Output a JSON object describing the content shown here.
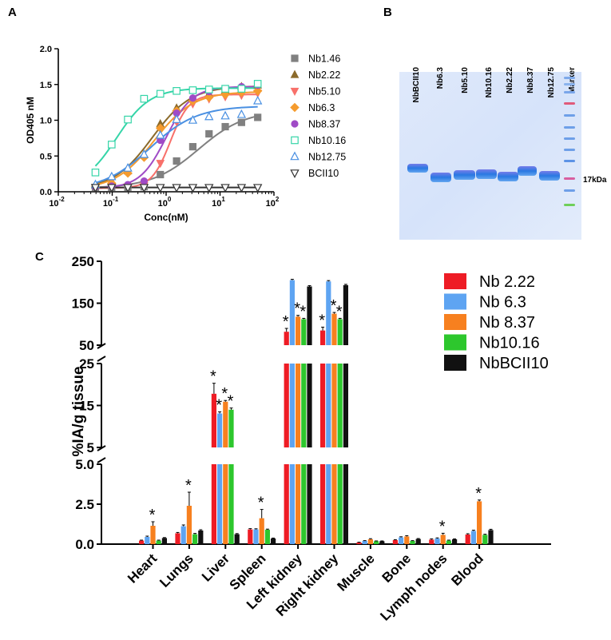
{
  "panels": {
    "a_label": "A",
    "b_label": "B",
    "c_label": "C"
  },
  "chart_data": [
    {
      "type": "scatter",
      "panel": "A",
      "xlabel": "Conc(nM)",
      "ylabel": "OD405 nM",
      "xscale": "log",
      "xlim": [
        0.01,
        100
      ],
      "ylim": [
        0,
        2.0
      ],
      "xticks": [
        0.01,
        0.1,
        1,
        10,
        100
      ],
      "xtick_labels": [
        [
          "10",
          "-2"
        ],
        [
          "10",
          "-1"
        ],
        [
          "10",
          "0"
        ],
        [
          "10",
          "1"
        ],
        [
          "10",
          "2"
        ]
      ],
      "yticks": [
        0.0,
        0.5,
        1.0,
        1.5,
        2.0
      ],
      "ytick_labels": [
        "0.0",
        "0.5",
        "1.0",
        "1.5",
        "2.0"
      ],
      "x": [
        0.0488,
        0.0977,
        0.195,
        0.39,
        0.781,
        1.5625,
        3.125,
        6.25,
        12.5,
        25,
        50
      ],
      "legend_position": "right",
      "series": [
        {
          "name": "Nb1.46",
          "color": "#808080",
          "marker": "square-filled",
          "values": [
            0.06,
            0.06,
            0.06,
            0.07,
            0.24,
            0.43,
            0.63,
            0.81,
            0.91,
            0.97,
            1.04
          ],
          "fit": {
            "bottom": 0.05,
            "top": 1.14,
            "ec50": 4.0,
            "hill": 1.0
          }
        },
        {
          "name": "Nb2.22",
          "color": "#8B6A2B",
          "marker": "triangle-up-filled",
          "values": [
            0.09,
            0.15,
            0.29,
            0.52,
            0.95,
            1.17,
            1.3,
            1.37,
            1.42,
            1.47,
            1.49
          ],
          "fit": {
            "bottom": 0.03,
            "top": 1.48,
            "ec50": 0.55,
            "hill": 1.2
          }
        },
        {
          "name": "Nb5.10",
          "color": "#F8706A",
          "marker": "triangle-down-filled",
          "values": [
            0.06,
            0.06,
            0.07,
            0.09,
            0.4,
            0.98,
            1.23,
            1.3,
            1.33,
            1.35,
            1.38
          ],
          "fit": {
            "bottom": 0.05,
            "top": 1.36,
            "ec50": 1.2,
            "hill": 2.5
          }
        },
        {
          "name": "Nb6.3",
          "color": "#F59B2E",
          "marker": "diamond-filled",
          "values": [
            0.07,
            0.12,
            0.26,
            0.48,
            0.89,
            1.13,
            1.27,
            1.32,
            1.36,
            1.39,
            1.41
          ],
          "fit": {
            "bottom": 0.03,
            "top": 1.4,
            "ec50": 0.6,
            "hill": 1.2
          }
        },
        {
          "name": "Nb8.37",
          "color": "#A04BC6",
          "marker": "circle-filled",
          "values": [
            0.07,
            0.08,
            0.1,
            0.15,
            0.72,
            1.1,
            1.31,
            1.4,
            1.44,
            1.47,
            1.49
          ],
          "fit": {
            "bottom": 0.05,
            "top": 1.47,
            "ec50": 1.0,
            "hill": 1.8
          }
        },
        {
          "name": "Nb10.16",
          "color": "#35D5A8",
          "marker": "square-open",
          "values": [
            0.27,
            0.66,
            1.01,
            1.3,
            1.37,
            1.41,
            1.42,
            1.43,
            1.44,
            1.44,
            1.51
          ],
          "fit": {
            "bottom": 0.05,
            "top": 1.45,
            "ec50": 0.12,
            "hill": 1.4
          }
        },
        {
          "name": "Nb12.75",
          "color": "#4A90E2",
          "marker": "triangle-up-open",
          "values": [
            0.1,
            0.21,
            0.33,
            0.52,
            0.79,
            1.01,
            1.0,
            1.05,
            1.06,
            1.08,
            1.27
          ],
          "fit": {
            "bottom": 0.02,
            "top": 1.2,
            "ec50": 0.5,
            "hill": 1.0
          }
        },
        {
          "name": "BCII10",
          "color": "#333333",
          "marker": "triangle-down-open",
          "values": [
            0.06,
            0.06,
            0.06,
            0.06,
            0.06,
            0.06,
            0.06,
            0.06,
            0.06,
            0.06,
            0.06
          ],
          "fit": {
            "bottom": 0.06,
            "top": 0.06,
            "ec50": 1.0,
            "hill": 1.0
          }
        }
      ]
    },
    {
      "type": "gel",
      "panel": "B",
      "lanes": [
        "NbBCII10",
        "Nb6.3",
        "Nb5.10",
        "Nb10.16",
        "Nb2.22",
        "Nb8.37",
        "Nb12.75",
        "Marker"
      ],
      "marker_label": "17kDa"
    },
    {
      "type": "bar",
      "panel": "C",
      "ylabel": "%IA/g tissue",
      "y_axis_segments": [
        {
          "range": [
            0,
            5.0
          ],
          "ticks": [
            "0.0",
            "2.5",
            "5.0"
          ]
        },
        {
          "range": [
            5,
            25
          ],
          "ticks": [
            "5",
            "15",
            "25"
          ]
        },
        {
          "range": [
            50,
            250
          ],
          "ticks": [
            "50",
            "150",
            "250"
          ]
        }
      ],
      "categories": [
        "Heart",
        "Lungs",
        "Liver",
        "Spleen",
        "Left kidney",
        "Right kidney",
        "Muscle",
        "Bone",
        "Lymph nodes",
        "Blood"
      ],
      "legend_position": "top-right",
      "series": [
        {
          "name": "Nb 2.22",
          "color": "#EE1C25",
          "values": [
            0.22,
            0.68,
            17.8,
            0.92,
            82,
            85,
            0.1,
            0.25,
            0.28,
            0.6
          ],
          "errors": [
            0.03,
            0.05,
            2.5,
            0.05,
            8,
            8,
            0.02,
            0.03,
            0.05,
            0.05
          ]
        },
        {
          "name": "Nb 6.3",
          "color": "#5EA4F2",
          "values": [
            0.45,
            1.12,
            13.1,
            0.92,
            205,
            202,
            0.2,
            0.42,
            0.35,
            0.82
          ],
          "errors": [
            0.05,
            0.08,
            0.4,
            0.04,
            2,
            2,
            0.02,
            0.04,
            0.04,
            0.05
          ]
        },
        {
          "name": "Nb 8.37",
          "color": "#F7801F",
          "values": [
            1.15,
            2.4,
            15.9,
            1.62,
            118,
            125,
            0.3,
            0.48,
            0.58,
            2.68
          ],
          "errors": [
            0.25,
            0.85,
            0.3,
            0.55,
            3,
            3,
            0.04,
            0.05,
            0.1,
            0.08
          ]
        },
        {
          "name": "Nb10.16",
          "color": "#2DC72D",
          "values": [
            0.22,
            0.62,
            14.0,
            0.9,
            112,
            112,
            0.18,
            0.2,
            0.22,
            0.58
          ],
          "errors": [
            0.03,
            0.05,
            0.4,
            0.04,
            2,
            2,
            0.02,
            0.02,
            0.03,
            0.04
          ]
        },
        {
          "name": "NbBCII10",
          "color": "#111111",
          "values": [
            0.38,
            0.85,
            0.62,
            0.35,
            190,
            193,
            0.18,
            0.32,
            0.3,
            0.88
          ],
          "errors": [
            0.03,
            0.05,
            0.04,
            0.03,
            2,
            2,
            0.02,
            0.03,
            0.03,
            0.05
          ]
        }
      ],
      "significance_marker": "*",
      "significance": [
        {
          "category": "Heart",
          "series": [
            "Nb 8.37"
          ]
        },
        {
          "category": "Lungs",
          "series": [
            "Nb 8.37"
          ]
        },
        {
          "category": "Liver",
          "series": [
            "Nb 2.22",
            "Nb 6.3",
            "Nb 8.37",
            "Nb10.16"
          ]
        },
        {
          "category": "Spleen",
          "series": [
            "Nb 8.37"
          ]
        },
        {
          "category": "Left kidney",
          "series": [
            "Nb 2.22",
            "Nb 8.37",
            "Nb10.16"
          ]
        },
        {
          "category": "Right kidney",
          "series": [
            "Nb 2.22",
            "Nb 8.37",
            "Nb10.16"
          ]
        },
        {
          "category": "Lymph nodes",
          "series": [
            "Nb 8.37"
          ]
        },
        {
          "category": "Blood",
          "series": [
            "Nb 8.37"
          ]
        }
      ]
    }
  ]
}
